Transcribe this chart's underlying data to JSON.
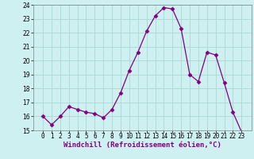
{
  "x": [
    0,
    1,
    2,
    3,
    4,
    5,
    6,
    7,
    8,
    9,
    10,
    11,
    12,
    13,
    14,
    15,
    16,
    17,
    18,
    19,
    20,
    21,
    22,
    23
  ],
  "y": [
    16.0,
    15.4,
    16.0,
    16.7,
    16.5,
    16.3,
    16.2,
    15.9,
    16.5,
    17.7,
    19.3,
    20.6,
    22.1,
    23.2,
    23.8,
    23.7,
    22.3,
    19.0,
    18.5,
    20.6,
    20.4,
    18.4,
    16.3,
    14.9
  ],
  "line_color": "#800080",
  "marker": "D",
  "marker_size": 2.5,
  "bg_color": "#cff0f0",
  "grid_color": "#aad8d8",
  "xlabel": "Windchill (Refroidissement éolien,°C)",
  "xlabel_color": "#800080",
  "ylim": [
    15,
    24
  ],
  "yticks": [
    15,
    16,
    17,
    18,
    19,
    20,
    21,
    22,
    23,
    24
  ],
  "xticks": [
    0,
    1,
    2,
    3,
    4,
    5,
    6,
    7,
    8,
    9,
    10,
    11,
    12,
    13,
    14,
    15,
    16,
    17,
    18,
    19,
    20,
    21,
    22,
    23
  ],
  "tick_fontsize": 5.5,
  "xlabel_fontsize": 6.5,
  "spine_color": "#808080"
}
